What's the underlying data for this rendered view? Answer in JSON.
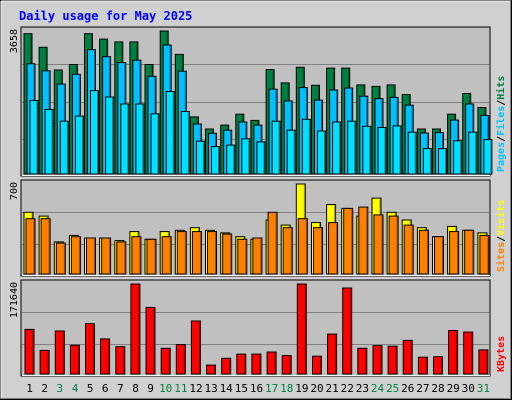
{
  "chart_data": {
    "type": "bar",
    "title": "Daily usage for May 2025",
    "x": [
      "1",
      "2",
      "3",
      "4",
      "5",
      "6",
      "7",
      "8",
      "9",
      "10",
      "11",
      "12",
      "13",
      "14",
      "15",
      "16",
      "17",
      "18",
      "19",
      "20",
      "21",
      "22",
      "23",
      "24",
      "25",
      "26",
      "27",
      "28",
      "29",
      "30",
      "31"
    ],
    "weekend_days": [
      "3",
      "4",
      "10",
      "11",
      "17",
      "18",
      "24",
      "25",
      "31"
    ],
    "colors": {
      "hits": "#008040",
      "files": "#00c0ff",
      "pages": "#00e0ff",
      "visits": "#ffff00",
      "sites": "#ff8000",
      "kbytes": "#ff0000",
      "title": "#0000ff",
      "weekday_label": "#000000",
      "weekend_label": "#008040",
      "plot_bg": "#c0c0c0",
      "frame_bg": "#d0d0d0"
    },
    "panels": [
      {
        "id": "hits-files-pages",
        "ymax": 3658,
        "ymax_label": "3658",
        "legend": [
          {
            "key": "pages",
            "text": "Pages"
          },
          {
            "key": "sep",
            "text": "/"
          },
          {
            "key": "files",
            "text": "Files"
          },
          {
            "key": "sep",
            "text": "/"
          },
          {
            "key": "hits",
            "text": "Hits"
          }
        ],
        "series": [
          {
            "key": "hits",
            "values": [
              3590,
              3240,
              2660,
              2800,
              3590,
              3450,
              3380,
              3380,
              2800,
              3658,
              3060,
              1460,
              1150,
              1250,
              1530,
              1370,
              2670,
              2330,
              2730,
              2270,
              2710,
              2710,
              2280,
              2240,
              2280,
              2030,
              1150,
              1150,
              1530,
              2060,
              1700
            ]
          },
          {
            "key": "files",
            "values": [
              2820,
              2640,
              2300,
              2550,
              3180,
              3000,
              2850,
              2910,
              2500,
              3300,
              2630,
              1280,
              1040,
              1120,
              1330,
              1250,
              2170,
              1870,
              2210,
              1890,
              2150,
              2200,
              1990,
              1930,
              1960,
              1760,
              1050,
              1060,
              1380,
              1790,
              1500
            ]
          },
          {
            "key": "pages",
            "values": [
              1880,
              1650,
              1350,
              1480,
              2130,
              1970,
              1790,
              1790,
              1540,
              2110,
              1600,
              840,
              700,
              740,
              900,
              820,
              1350,
              1120,
              1400,
              1100,
              1330,
              1350,
              1220,
              1190,
              1230,
              1070,
              650,
              650,
              850,
              1070,
              880
            ]
          }
        ]
      },
      {
        "id": "visits-sites",
        "ymax": 700,
        "ymax_label": "700",
        "legend": [
          {
            "key": "sites",
            "text": "Sites"
          },
          {
            "key": "sep",
            "text": "/"
          },
          {
            "key": "visits",
            "text": "Visits"
          }
        ],
        "series": [
          {
            "key": "visits",
            "values": [
              480,
              450,
              250,
              300,
              280,
              280,
              260,
              330,
              270,
              330,
              340,
              360,
              340,
              320,
              290,
              270,
              420,
              380,
              700,
              400,
              540,
              510,
              450,
              590,
              480,
              420,
              360,
              290,
              370,
              340,
              320
            ]
          },
          {
            "key": "sites",
            "values": [
              430,
              430,
              240,
              290,
              280,
              280,
              250,
              290,
              270,
              290,
              330,
              330,
              330,
              310,
              270,
              280,
              480,
              360,
              430,
              360,
              400,
              510,
              520,
              460,
              450,
              380,
              340,
              290,
              330,
              340,
              300
            ]
          }
        ]
      },
      {
        "id": "kbytes",
        "ymax": 171640,
        "ymax_label": "171640",
        "legend": [
          {
            "key": "kbytes",
            "text": "KBytes"
          }
        ],
        "series": [
          {
            "key": "kbytes",
            "values": [
              85000,
              45000,
              82000,
              55000,
              96000,
              67000,
              52000,
              171640,
              127000,
              49000,
              56000,
              101000,
              17000,
              30000,
              38000,
              38000,
              42000,
              35000,
              171640,
              34000,
              76000,
              164000,
              49000,
              54000,
              53000,
              64000,
              32000,
              33000,
              83000,
              80000,
              46000
            ]
          }
        ]
      }
    ]
  }
}
